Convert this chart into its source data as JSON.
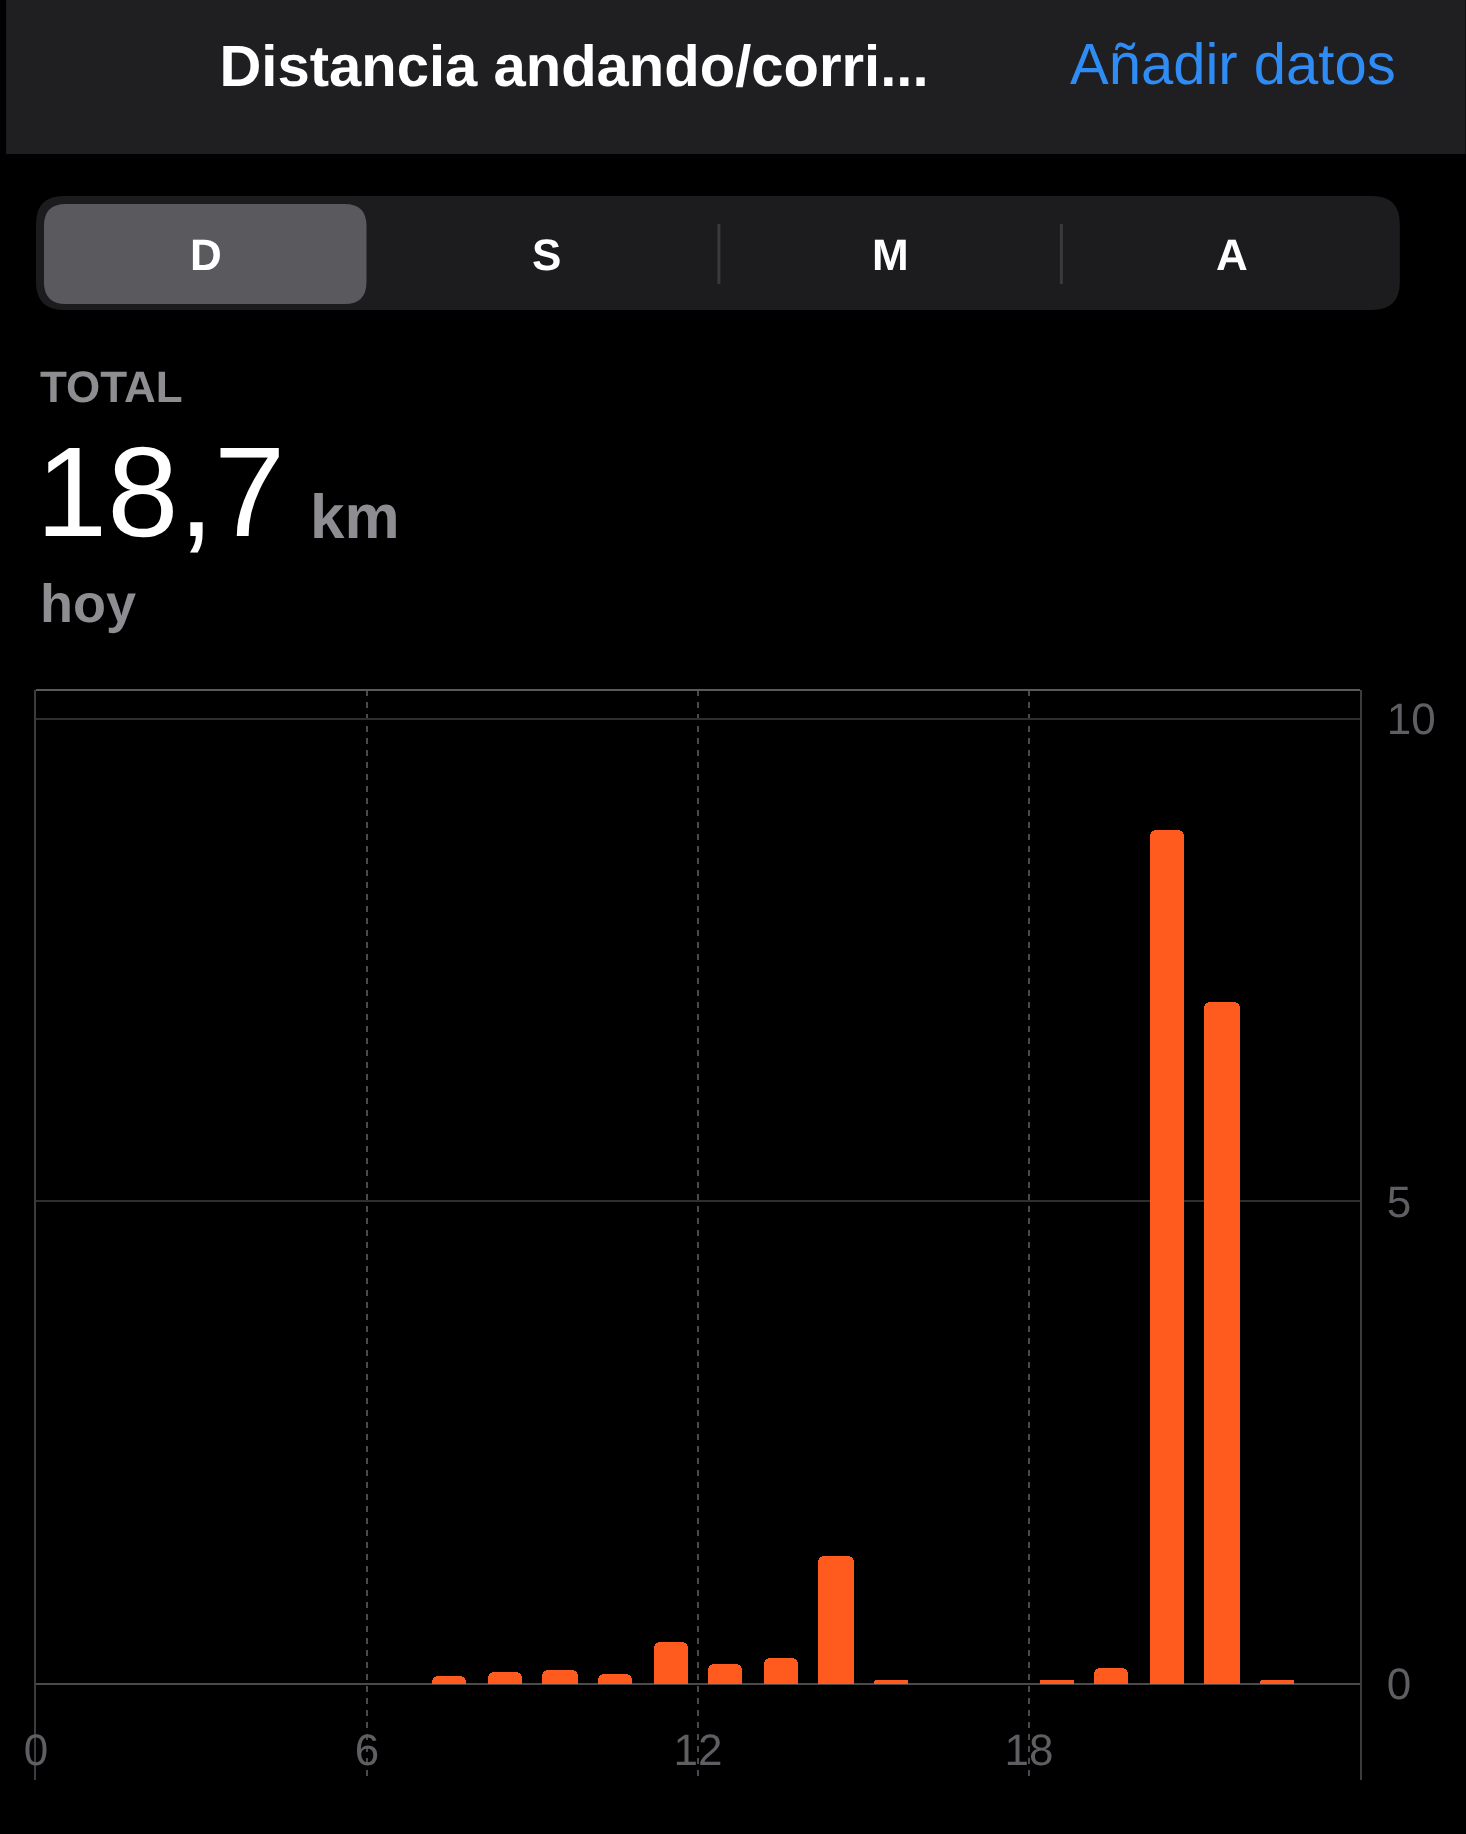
{
  "chart_data": {
    "type": "bar",
    "title": "Distancia andando/corri...",
    "annotations": [
      "Añadir datos",
      "D",
      "S",
      "M",
      "A",
      "TOTAL",
      "18,7",
      "km",
      "hoy"
    ],
    "x": [
      7.5,
      8.5,
      9.5,
      10.5,
      11.5,
      12.5,
      13.5,
      14.5,
      15.5,
      18.5,
      19.5,
      20.5,
      21.5,
      22.5
    ],
    "values": [
      0.08,
      0.11,
      0.15,
      0.09,
      0.44,
      0.2,
      0.26,
      1.32,
      0.03,
      0.02,
      0.17,
      8.85,
      7.06,
      0.04
    ],
    "color": "#ff5b1e",
    "xlim": [
      0,
      24
    ],
    "xticks": [
      0,
      6,
      12,
      18
    ],
    "ylim": [
      -1,
      10.3
    ],
    "yticks": [
      0,
      5,
      10
    ],
    "grid": true
  }
}
